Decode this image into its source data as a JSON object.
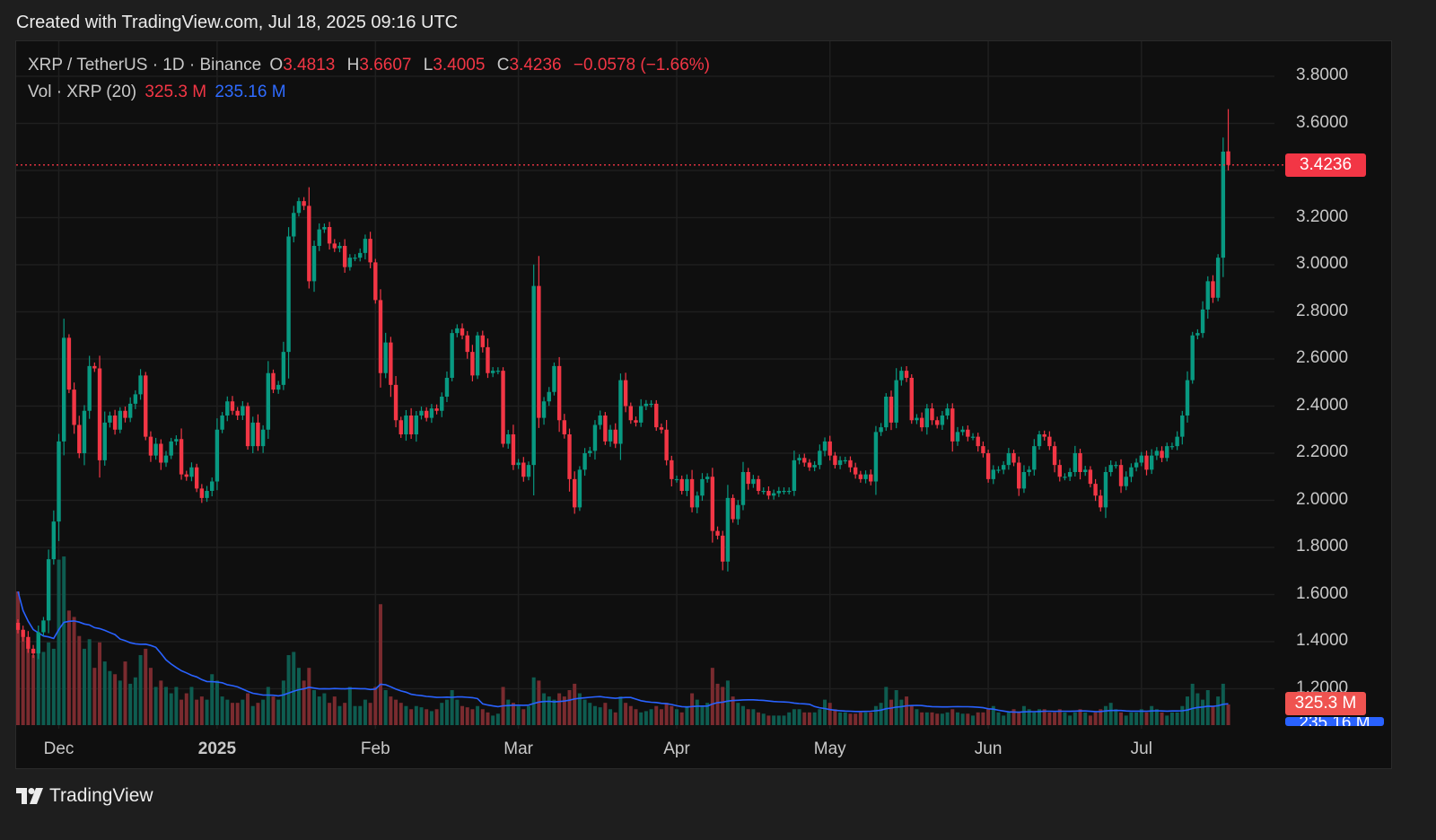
{
  "header": {
    "credit": "Created with TradingView.com, Jul 18, 2025 09:16 UTC"
  },
  "legend": {
    "symbol": "XRP / TetherUS · 1D · Binance",
    "open_label": "O",
    "open": "3.4813",
    "high_label": "H",
    "high": "3.6607",
    "low_label": "L",
    "low": "3.4005",
    "close_label": "C",
    "close": "3.4236",
    "change": "−0.0578 (−1.66%)",
    "vol_title": "Vol · XRP (20)",
    "vol_value": "325.3 M",
    "vol_ma": "235.16 M"
  },
  "price_tag": "3.4236",
  "vol_tag": "325.3 M",
  "vol_ma_tag": "235.16 M",
  "footer": {
    "logo_text": "TradingView"
  },
  "colors": {
    "up": "#089981",
    "down": "#f23645",
    "vol_up": "#0e5c50",
    "vol_down": "#7a2b2f",
    "vol_ma": "#2962ff",
    "background": "#0f0f0f",
    "grid": "#1f1f1f"
  },
  "chart_data": {
    "type": "candlestick",
    "title": "XRP / TetherUS · 1D · Binance",
    "y_ticks": [
      "3.8000",
      "3.6000",
      "3.4000",
      "3.2000",
      "3.0000",
      "2.8000",
      "2.6000",
      "2.4000",
      "2.2000",
      "2.0000",
      "1.8000",
      "1.6000",
      "1.4000",
      "1.2000"
    ],
    "ylim": [
      1.2,
      3.8
    ],
    "x_ticks": [
      {
        "label": "Dec",
        "bold": false
      },
      {
        "label": "2025",
        "bold": true
      },
      {
        "label": "Feb",
        "bold": false
      },
      {
        "label": "Mar",
        "bold": false
      },
      {
        "label": "Apr",
        "bold": false
      },
      {
        "label": "May",
        "bold": false
      },
      {
        "label": "Jun",
        "bold": false
      },
      {
        "label": "Jul",
        "bold": false
      }
    ],
    "grid": true,
    "last_candle": {
      "open": 3.4813,
      "high": 3.6607,
      "low": 3.4005,
      "close": 3.4236,
      "volume_m": 325.3
    },
    "close": [
      1.45,
      1.42,
      1.37,
      1.35,
      1.44,
      1.49,
      1.75,
      1.91,
      2.25,
      2.69,
      2.47,
      2.32,
      2.2,
      2.38,
      2.57,
      2.56,
      2.17,
      2.33,
      2.36,
      2.3,
      2.38,
      2.35,
      2.41,
      2.45,
      2.53,
      2.27,
      2.19,
      2.24,
      2.16,
      2.19,
      2.25,
      2.26,
      2.11,
      2.1,
      2.14,
      2.05,
      2.01,
      2.04,
      2.08,
      2.3,
      2.36,
      2.42,
      2.38,
      2.36,
      2.4,
      2.23,
      2.33,
      2.23,
      2.3,
      2.54,
      2.47,
      2.49,
      2.63,
      3.12,
      3.22,
      3.27,
      3.25,
      2.93,
      3.08,
      3.15,
      3.16,
      3.09,
      3.07,
      3.08,
      2.99,
      3.03,
      3.03,
      3.05,
      3.11,
      3.01,
      2.85,
      2.54,
      2.67,
      2.49,
      2.34,
      2.28,
      2.36,
      2.28,
      2.36,
      2.38,
      2.35,
      2.39,
      2.38,
      2.44,
      2.52,
      2.71,
      2.73,
      2.7,
      2.63,
      2.53,
      2.7,
      2.65,
      2.54,
      2.55,
      2.55,
      2.24,
      2.28,
      2.15,
      2.16,
      2.1,
      2.15,
      2.91,
      2.35,
      2.42,
      2.46,
      2.57,
      2.34,
      2.28,
      2.09,
      1.97,
      2.13,
      2.2,
      2.21,
      2.32,
      2.36,
      2.25,
      2.3,
      2.24,
      2.51,
      2.4,
      2.34,
      2.33,
      2.4,
      2.41,
      2.41,
      2.31,
      2.3,
      2.17,
      2.09,
      2.09,
      2.04,
      2.09,
      1.97,
      2.02,
      2.09,
      2.1,
      1.87,
      1.85,
      1.74,
      2.01,
      1.92,
      1.98,
      2.12,
      2.07,
      2.09,
      2.04,
      2.04,
      2.02,
      2.03,
      2.04,
      2.04,
      2.04,
      2.17,
      2.18,
      2.16,
      2.14,
      2.15,
      2.21,
      2.25,
      2.19,
      2.15,
      2.17,
      2.17,
      2.14,
      2.11,
      2.09,
      2.11,
      2.08,
      2.29,
      2.31,
      2.44,
      2.33,
      2.51,
      2.55,
      2.52,
      2.34,
      2.35,
      2.31,
      2.39,
      2.34,
      2.32,
      2.36,
      2.39,
      2.25,
      2.29,
      2.3,
      2.27,
      2.27,
      2.23,
      2.2,
      2.09,
      2.13,
      2.13,
      2.15,
      2.2,
      2.16,
      2.05,
      2.12,
      2.13,
      2.23,
      2.28,
      2.27,
      2.23,
      2.15,
      2.1,
      2.1,
      2.12,
      2.2,
      2.12,
      2.13,
      2.07,
      2.02,
      1.97,
      2.12,
      2.15,
      2.15,
      2.06,
      2.1,
      2.14,
      2.16,
      2.19,
      2.13,
      2.19,
      2.21,
      2.18,
      2.23,
      2.23,
      2.27,
      2.36,
      2.51,
      2.7,
      2.71,
      2.81,
      2.93,
      2.86,
      3.03,
      3.48,
      3.4236
    ],
    "volume_m": [
      2100,
      1500,
      1300,
      1100,
      1250,
      1150,
      1300,
      1200,
      2600,
      2650,
      1800,
      1700,
      1400,
      1200,
      1350,
      900,
      1300,
      1000,
      850,
      800,
      700,
      1000,
      650,
      750,
      1100,
      1200,
      900,
      600,
      700,
      600,
      500,
      600,
      400,
      500,
      600,
      400,
      450,
      400,
      800,
      700,
      450,
      400,
      350,
      350,
      400,
      500,
      300,
      350,
      400,
      600,
      450,
      400,
      700,
      1100,
      1150,
      900,
      700,
      900,
      550,
      450,
      500,
      350,
      450,
      300,
      350,
      600,
      300,
      300,
      400,
      350,
      600,
      1900,
      550,
      450,
      400,
      350,
      300,
      250,
      300,
      280,
      250,
      220,
      250,
      350,
      400,
      550,
      400,
      300,
      280,
      250,
      300,
      250,
      200,
      150,
      180,
      600,
      400,
      350,
      300,
      250,
      300,
      750,
      700,
      500,
      450,
      400,
      500,
      450,
      550,
      650,
      500,
      400,
      350,
      300,
      280,
      350,
      250,
      200,
      450,
      350,
      300,
      250,
      200,
      220,
      250,
      300,
      250,
      350,
      300,
      250,
      200,
      300,
      500,
      400,
      300,
      350,
      900,
      650,
      600,
      700,
      450,
      350,
      300,
      250,
      250,
      200,
      180,
      150,
      150,
      150,
      150,
      200,
      250,
      250,
      200,
      200,
      200,
      250,
      400,
      350,
      250,
      200,
      200,
      180,
      180,
      200,
      200,
      200,
      300,
      350,
      600,
      400,
      550,
      400,
      450,
      300,
      250,
      200,
      200,
      200,
      180,
      180,
      200,
      250,
      200,
      180,
      180,
      150,
      200,
      200,
      250,
      300,
      200,
      150,
      200,
      250,
      200,
      300,
      250,
      200,
      250,
      250,
      200,
      200,
      250,
      200,
      150,
      200,
      250,
      200,
      150,
      200,
      250,
      300,
      350,
      250,
      200,
      150,
      200,
      200,
      250,
      200,
      300,
      250,
      200,
      150,
      200,
      200,
      300,
      450,
      650,
      500,
      400,
      550,
      300,
      450,
      650,
      325.3
    ],
    "volume_ma_period": 20
  }
}
